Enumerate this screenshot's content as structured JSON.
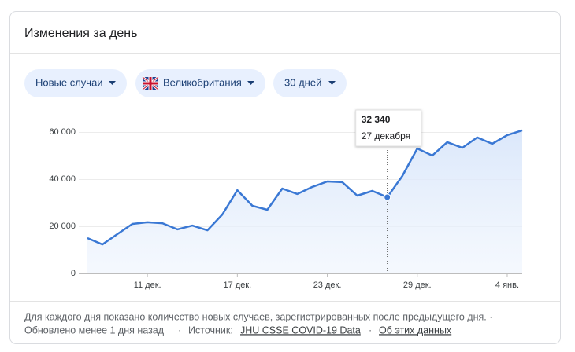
{
  "header": {
    "title": "Изменения за день"
  },
  "filters": [
    {
      "label": "Новые случаи"
    },
    {
      "label": "Великобритания"
    },
    {
      "label": "30 дней"
    }
  ],
  "chart_data": {
    "type": "line",
    "categories": [
      null,
      null,
      null,
      null,
      "11 дек.",
      null,
      null,
      null,
      null,
      null,
      "17 дек.",
      null,
      null,
      null,
      null,
      null,
      "23 дек.",
      null,
      null,
      null,
      null,
      null,
      "29 дек.",
      null,
      null,
      null,
      null,
      null,
      "4 янв.",
      null
    ],
    "values": [
      15000,
      12300,
      16700,
      21000,
      21700,
      21300,
      18700,
      20300,
      18300,
      25000,
      35300,
      28700,
      27000,
      36000,
      33700,
      36700,
      39000,
      38700,
      33000,
      35000,
      32340,
      41300,
      53000,
      50000,
      55700,
      53300,
      57700,
      55000,
      58700,
      60700
    ],
    "value_labels": [
      null,
      null,
      null,
      null,
      null,
      null,
      null,
      null,
      null,
      null,
      null,
      null,
      null,
      null,
      null,
      null,
      null,
      null,
      null,
      null,
      "32 340",
      null,
      null,
      null,
      null,
      null,
      null,
      null,
      null,
      null
    ],
    "tooltip_date": "27 декабря",
    "color": "#3a78d4",
    "ylim": [
      0,
      60000
    ],
    "yticks": [
      0,
      {
        "value": 20000,
        "label": "20 000"
      },
      {
        "value": 40000,
        "label": "40 000"
      },
      {
        "value": 60000,
        "label": "60 000"
      }
    ],
    "grid": true
  },
  "footer": {
    "note": "Для каждого дня показано количество новых случаев, зарегистрированных после предыдущего дня. ·",
    "updated": "Обновлено менее 1 дня назад",
    "separator": "·",
    "source_label": "Источник:",
    "source_link": "JHU CSSE COVID-19 Data",
    "about_link": "Об этих данных"
  }
}
